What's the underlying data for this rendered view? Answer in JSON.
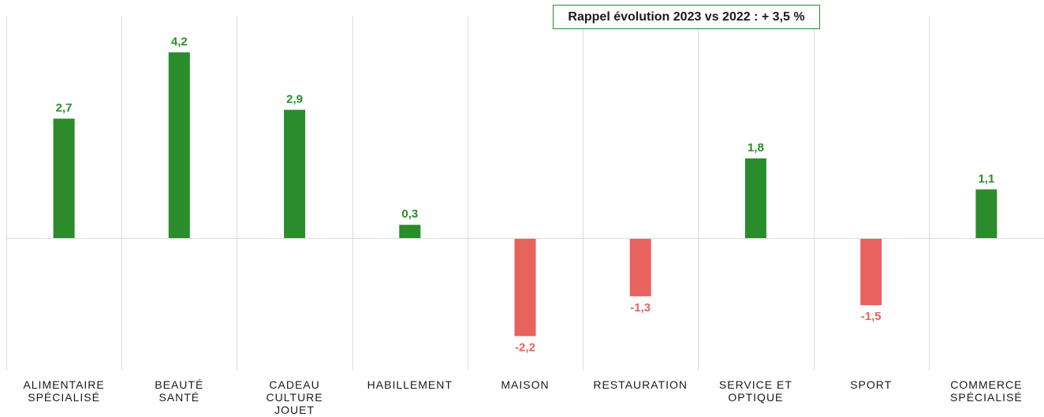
{
  "annotation": "Rappel évolution 2023 vs 2022 : + 3,5 %",
  "colors": {
    "positive": "#2a8c2a",
    "negative": "#e8625e",
    "grid": "#dddddd",
    "text": "#1a1a1a"
  },
  "chart_data": {
    "type": "bar",
    "title": "",
    "xlabel": "",
    "ylabel": "",
    "ylim": [
      -3.6,
      5.2
    ],
    "grid": true,
    "legend": "none",
    "categories": [
      [
        "ALIMENTAIRE",
        "SPÉCIALISÉ"
      ],
      [
        "BEAUTÉ",
        "SANTÉ"
      ],
      [
        "CADEAU",
        "CULTURE",
        "JOUET"
      ],
      [
        "HABILLEMENT"
      ],
      [
        "MAISON"
      ],
      [
        "RESTAURATION"
      ],
      [
        "SERVICE ET",
        "OPTIQUE"
      ],
      [
        "SPORT"
      ],
      [
        "COMMERCE",
        "SPÉCIALISÉ"
      ]
    ],
    "values": [
      2.7,
      4.2,
      2.9,
      0.3,
      -2.2,
      -1.3,
      1.8,
      -1.5,
      1.1
    ],
    "value_labels": [
      "2,7",
      "4,2",
      "2,9",
      "0,3",
      "-2,2",
      "-1,3",
      "1,8",
      "-1,5",
      "1,1"
    ]
  }
}
